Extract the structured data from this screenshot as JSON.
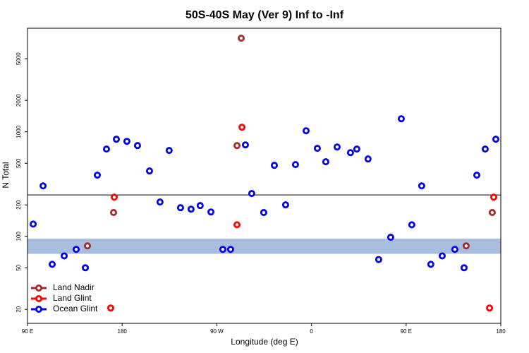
{
  "chart_data": {
    "type": "scatter",
    "title": "50S-40S May (Ver 9)   Inf to -Inf",
    "xlabel": "Longitude (deg E)",
    "ylabel": "N Total",
    "xlim": [
      90,
      540
    ],
    "ylim": [
      14.7,
      9800
    ],
    "ylog": true,
    "xticks": [
      {
        "value": 90,
        "label": "90 E"
      },
      {
        "value": 180,
        "label": "180"
      },
      {
        "value": 270,
        "label": "90 W"
      },
      {
        "value": 360,
        "label": "0"
      },
      {
        "value": 450,
        "label": "90 E"
      },
      {
        "value": 540,
        "label": "180"
      }
    ],
    "yticks": [
      20,
      50,
      100,
      200,
      500,
      1000,
      2000,
      5000
    ],
    "hline": 249,
    "band": [
      68,
      95
    ],
    "band_color": "#a8bedf",
    "legend": "bottom-left",
    "series": [
      {
        "name": "Land Nadir",
        "color": "#a52a2a",
        "x": [
          171.8,
          147.0,
          293.2,
          289.2,
          531.9,
          507.1
        ],
        "values": [
          169,
          81,
          7870,
          739,
          169,
          81
        ]
      },
      {
        "name": "Land Glint",
        "color": "#ff0000",
        "x": [
          172.5,
          169.1,
          293.9,
          289.2,
          533.3,
          529.3
        ],
        "values": [
          237,
          20.6,
          1107,
          129,
          237,
          20.6
        ]
      },
      {
        "name": "Ocean Glint",
        "color": "#0000ee",
        "x": [
          95.4,
          104.8,
          113.5,
          124.9,
          136.3,
          145.0,
          156.4,
          165.1,
          174.5,
          184.5,
          194.6,
          206.0,
          216.0,
          224.7,
          235.5,
          245.5,
          254.2,
          264.4,
          275.7,
          283.1,
          297.2,
          303.2,
          314.6,
          324.7,
          335.4,
          344.8,
          354.9,
          365.6,
          373.6,
          384.4,
          397.1,
          403.1,
          413.8,
          423.9,
          435.3,
          445.4,
          455.4,
          464.8,
          473.5,
          484.3,
          496.3,
          505.1,
          517.2,
          525.2,
          535.3
        ],
        "values": [
          131,
          304,
          54,
          65,
          75,
          50,
          385,
          684,
          850,
          811,
          739,
          422,
          213,
          663,
          188,
          182,
          197,
          171,
          75,
          75,
          750,
          257,
          169,
          478,
          200,
          486,
          1024,
          695,
          517,
          716,
          632,
          684,
          550,
          60,
          98,
          1334,
          129,
          304,
          54,
          65,
          75,
          50,
          385,
          684,
          850
        ]
      }
    ]
  }
}
